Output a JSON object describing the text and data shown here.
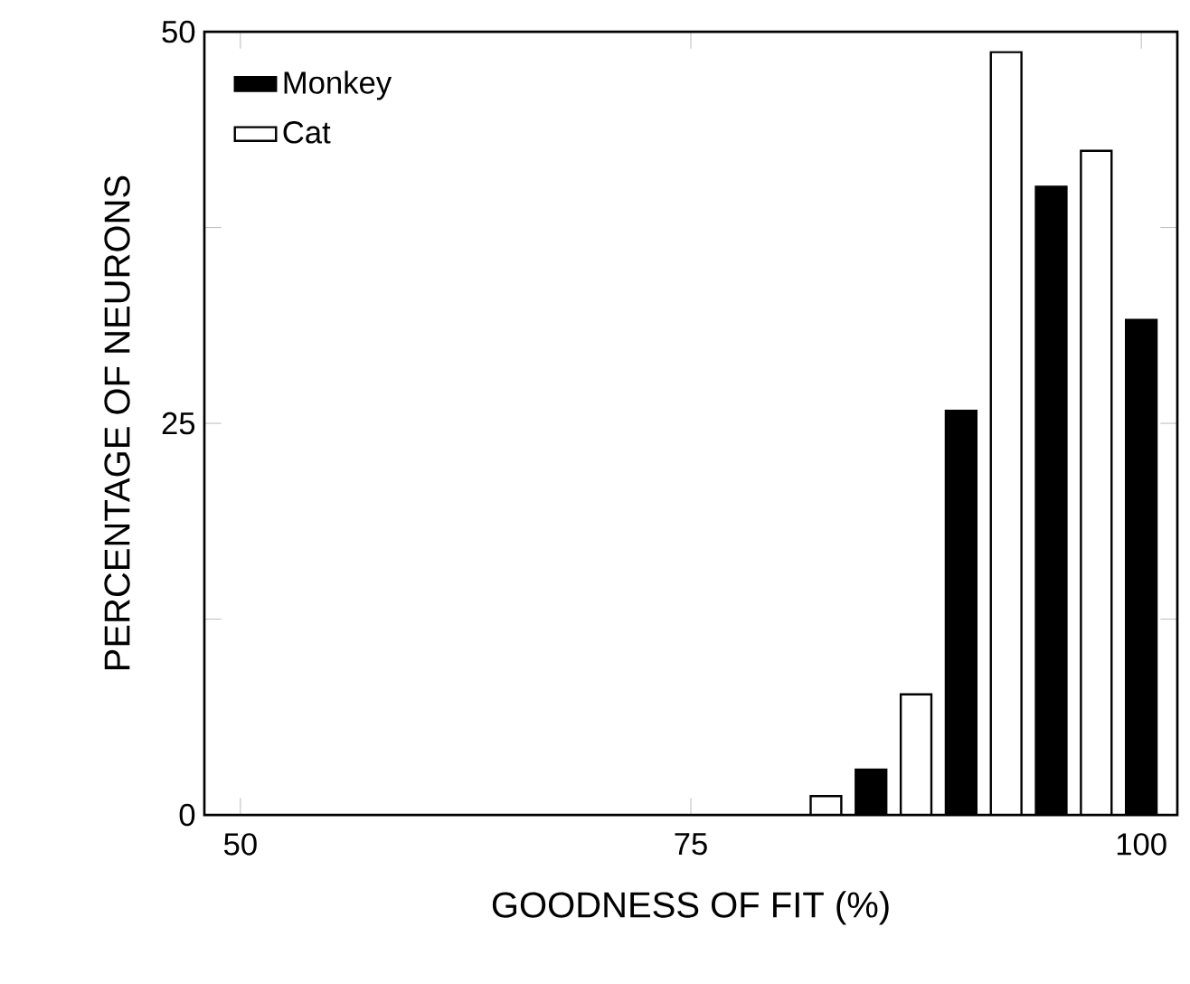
{
  "chart_data": {
    "type": "bar",
    "xlabel": "GOODNESS OF FIT (%)",
    "ylabel": "PERCENTAGE OF NEURONS",
    "series": [
      {
        "name": "Monkey",
        "color": "#000000",
        "x": [
          85,
          90,
          95,
          100
        ],
        "values": [
          2.9,
          25.8,
          40.1,
          31.6
        ]
      },
      {
        "name": "Cat",
        "color": "#ffffff",
        "x": [
          82.5,
          87.5,
          92.5,
          97.5
        ],
        "values": [
          1.2,
          7.7,
          48.7,
          42.4
        ]
      }
    ],
    "xlim": [
      48,
      102
    ],
    "ylim": [
      0,
      50
    ],
    "xticks": [
      50,
      75,
      100
    ],
    "yticks": [
      0,
      {
        "value": 12.5,
        "label": null
      },
      25,
      {
        "value": 37.5,
        "label": null
      },
      50
    ],
    "legend": "top left"
  }
}
